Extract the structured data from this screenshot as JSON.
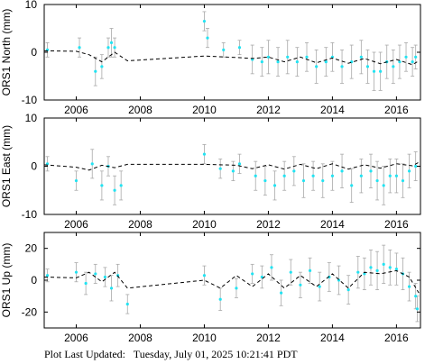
{
  "footer": {
    "label": "Plot Last Updated:",
    "timestamp": "Tuesday, July 01, 2025 10:21:41 PDT"
  },
  "colors": {
    "observation": "#22e3f2",
    "error_bar": "#a9a9a9",
    "model": "#000000",
    "frame": "#000000"
  },
  "chart_data": [
    {
      "type": "scatter",
      "title": "",
      "ylabel": "ORS1 North (mm)",
      "xlabel": "",
      "xlim": [
        2005.0,
        2016.75
      ],
      "ylim": [
        -10,
        10
      ],
      "xticks": [
        "2006",
        "2008",
        "2010",
        "2012",
        "2014",
        "2016"
      ],
      "yticks": [
        "10",
        "0",
        "-10"
      ],
      "grid": false,
      "series": [
        {
          "kind": "observations-with-error-bars",
          "x": [
            2005.1,
            2006.1,
            2006.6,
            2006.8,
            2007.0,
            2007.1,
            2007.2,
            2010.0,
            2010.1,
            2010.6,
            2011.1,
            2011.5,
            2011.8,
            2012.0,
            2012.3,
            2012.6,
            2012.9,
            2013.2,
            2013.5,
            2013.8,
            2014.0,
            2014.3,
            2014.6,
            2014.9,
            2015.1,
            2015.3,
            2015.5,
            2015.7,
            2015.9,
            2016.1,
            2016.3,
            2016.5,
            2016.6
          ],
          "y": [
            0.5,
            1,
            -4,
            -3,
            1,
            2,
            1,
            6.5,
            3,
            0.5,
            1,
            -1.5,
            -2,
            -1,
            -2,
            -1,
            -2,
            -1,
            -3,
            -2,
            -1,
            -3,
            -2,
            -1,
            -3,
            -4,
            -4,
            -2,
            -3,
            -2,
            -1,
            -2,
            -1
          ],
          "yerr": [
            1.5,
            2,
            3,
            2.5,
            2,
            3,
            2,
            2,
            2,
            1.5,
            1.5,
            3,
            3,
            3.5,
            3,
            3.5,
            3,
            3,
            3.5,
            3,
            3,
            3.5,
            3.5,
            3.5,
            3.5,
            4,
            4,
            3.5,
            3.5,
            3.5,
            3,
            3,
            2.5
          ]
        },
        {
          "kind": "model-dashed",
          "x": [
            2005.0,
            2006.0,
            2006.4,
            2006.8,
            2007.2,
            2007.6,
            2010.0,
            2011.0,
            2011.5,
            2012.0,
            2012.5,
            2013.0,
            2013.5,
            2014.0,
            2014.5,
            2015.0,
            2015.5,
            2016.0,
            2016.5,
            2016.7
          ],
          "y": [
            0.3,
            0.2,
            -0.5,
            -2,
            0,
            -1.8,
            -0.8,
            -1.1,
            -1.3,
            -1.0,
            -2.0,
            -1.0,
            -2.2,
            -1.2,
            -2.3,
            -1.3,
            -2.4,
            -1.5,
            -2.6,
            -1.8
          ]
        }
      ]
    },
    {
      "type": "scatter",
      "title": "",
      "ylabel": "ORS1 East (mm)",
      "xlabel": "",
      "xlim": [
        2005.0,
        2016.75
      ],
      "ylim": [
        -10,
        10
      ],
      "xticks": [
        "2006",
        "2008",
        "2010",
        "2012",
        "2014",
        "2016"
      ],
      "yticks": [
        "10",
        "0",
        "-10"
      ],
      "grid": false,
      "series": [
        {
          "kind": "observations-with-error-bars",
          "x": [
            2005.1,
            2006.0,
            2006.5,
            2006.8,
            2007.0,
            2007.2,
            2007.4,
            2010.0,
            2010.5,
            2010.9,
            2011.1,
            2011.6,
            2011.9,
            2012.2,
            2012.5,
            2012.8,
            2013.1,
            2013.4,
            2013.7,
            2014.0,
            2014.3,
            2014.6,
            2014.9,
            2015.2,
            2015.4,
            2015.6,
            2015.8,
            2016.0,
            2016.2,
            2016.4,
            2016.6
          ],
          "y": [
            0.5,
            -3,
            0.5,
            -4,
            0,
            -5,
            -4,
            2.5,
            -0.5,
            -1,
            0.5,
            -2,
            -3,
            -4,
            -2,
            -1,
            -3,
            -2,
            -3,
            -2,
            -1,
            -4,
            -2,
            -1,
            -3,
            -4,
            -2,
            -2,
            -3,
            -1,
            0
          ],
          "yerr": [
            1.5,
            2,
            3,
            3,
            2,
            3,
            3,
            2,
            2,
            2,
            2,
            3,
            3,
            3,
            3,
            3,
            3.5,
            3,
            3.5,
            3,
            3.5,
            3.5,
            3.5,
            3.5,
            4,
            4,
            3.5,
            3.5,
            3.5,
            3.5,
            3
          ]
        },
        {
          "kind": "model-dashed",
          "x": [
            2005.0,
            2006.0,
            2006.4,
            2006.8,
            2007.2,
            2007.6,
            2010.0,
            2011.0,
            2011.5,
            2012.0,
            2012.5,
            2013.0,
            2013.5,
            2014.0,
            2014.5,
            2015.0,
            2015.5,
            2016.0,
            2016.5,
            2016.7
          ],
          "y": [
            0.3,
            -0.2,
            -0.8,
            0.2,
            -0.3,
            0.4,
            0.4,
            0.2,
            -0.5,
            0.3,
            -0.6,
            0.4,
            -0.5,
            0.5,
            -0.6,
            0.3,
            -0.4,
            0.5,
            0.1,
            0.8
          ]
        }
      ]
    },
    {
      "type": "scatter",
      "title": "",
      "ylabel": "ORS1 Up (mm)",
      "xlabel": "",
      "xlim": [
        2005.0,
        2016.75
      ],
      "ylim": [
        -30,
        30
      ],
      "xticks": [
        "2006",
        "2008",
        "2010",
        "2012",
        "2014",
        "2016"
      ],
      "yticks": [
        "20",
        "0",
        "-20"
      ],
      "grid": false,
      "series": [
        {
          "kind": "observations-with-error-bars",
          "x": [
            2005.1,
            2006.0,
            2006.3,
            2006.6,
            2006.9,
            2007.1,
            2007.3,
            2007.6,
            2010.0,
            2010.5,
            2011.0,
            2011.5,
            2011.8,
            2012.1,
            2012.4,
            2012.7,
            2013.0,
            2013.3,
            2013.6,
            2013.9,
            2014.2,
            2014.5,
            2014.8,
            2015.0,
            2015.2,
            2015.4,
            2015.6,
            2015.8,
            2016.0,
            2016.2,
            2016.4,
            2016.6,
            2016.65
          ],
          "y": [
            3,
            5,
            -2,
            4,
            2,
            -5,
            3,
            -15,
            3,
            -12,
            -5,
            4,
            2,
            8,
            -8,
            5,
            -3,
            6,
            -4,
            2,
            0,
            -6,
            5,
            4,
            8,
            6,
            10,
            8,
            7,
            4,
            -4,
            -10,
            -18
          ],
          "yerr": [
            4,
            6,
            7,
            6,
            6,
            8,
            7,
            6,
            6,
            7,
            6,
            6,
            7,
            8,
            8,
            8,
            8,
            8,
            9,
            9,
            9,
            9,
            10,
            10,
            11,
            12,
            12,
            11,
            10,
            10,
            9,
            8,
            8
          ]
        },
        {
          "kind": "model-dashed",
          "x": [
            2005.0,
            2006.0,
            2006.4,
            2006.8,
            2007.2,
            2007.6,
            2010.0,
            2010.5,
            2011.0,
            2011.5,
            2012.0,
            2012.5,
            2013.0,
            2013.5,
            2014.0,
            2014.5,
            2015.0,
            2015.5,
            2016.0,
            2016.4,
            2016.7
          ],
          "y": [
            2,
            1.5,
            5,
            -1,
            5,
            -5,
            0,
            -5,
            3,
            -4,
            4,
            -5,
            3,
            -4,
            4,
            -5,
            5,
            4,
            6,
            2,
            -8
          ]
        }
      ]
    }
  ]
}
